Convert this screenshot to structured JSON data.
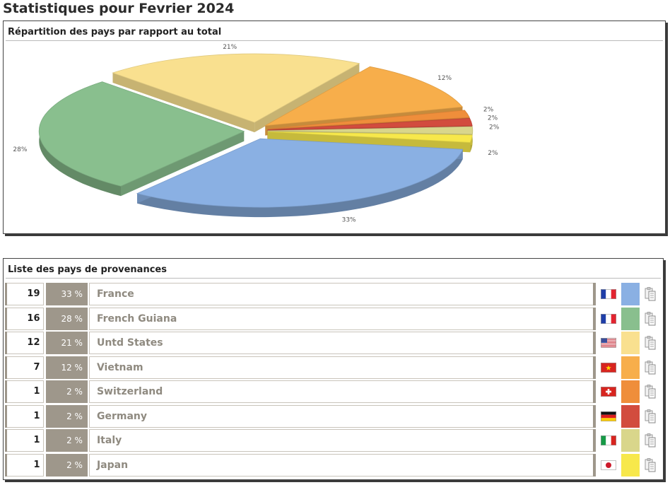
{
  "page": {
    "title": "Statistiques pour Fevrier 2024"
  },
  "chart_panel": {
    "title": "Répartition des pays par rapport au total"
  },
  "list_panel": {
    "title": "Liste des pays de provenances"
  },
  "chart_data": {
    "type": "pie",
    "title": "",
    "categories": [
      "France",
      "French Guiana",
      "Untd States",
      "Vietnam",
      "Switzerland",
      "Germany",
      "Italy",
      "Japan"
    ],
    "values": [
      19,
      16,
      12,
      7,
      1,
      1,
      1,
      1
    ],
    "labels": [
      "33%",
      "28%",
      "21%",
      "12%",
      "2%",
      "2%",
      "2%",
      "2%"
    ],
    "colors": [
      "#8ab0e3",
      "#89bf8e",
      "#f9e08f",
      "#f7ae4b",
      "#ef8e3b",
      "#d24c3e",
      "#d9d68b",
      "#f7e84b"
    ],
    "exploded": true
  },
  "rows": [
    {
      "count": "19",
      "percent": "33 %",
      "country": "France",
      "flag_icon": "flag-france-icon",
      "color": "#8ab0e3"
    },
    {
      "count": "16",
      "percent": "28 %",
      "country": "French Guiana",
      "flag_icon": "flag-france-icon",
      "color": "#89bf8e"
    },
    {
      "count": "12",
      "percent": "21 %",
      "country": "Untd States",
      "flag_icon": "flag-usa-icon",
      "color": "#f9e08f"
    },
    {
      "count": "7",
      "percent": "12 %",
      "country": "Vietnam",
      "flag_icon": "flag-vietnam-icon",
      "color": "#f7ae4b"
    },
    {
      "count": "1",
      "percent": "2 %",
      "country": "Switzerland",
      "flag_icon": "flag-switzerland-icon",
      "color": "#ef8e3b"
    },
    {
      "count": "1",
      "percent": "2 %",
      "country": "Germany",
      "flag_icon": "flag-germany-icon",
      "color": "#d24c3e"
    },
    {
      "count": "1",
      "percent": "2 %",
      "country": "Italy",
      "flag_icon": "flag-italy-icon",
      "color": "#d9d68b"
    },
    {
      "count": "1",
      "percent": "2 %",
      "country": "Japan",
      "flag_icon": "flag-japan-icon",
      "color": "#f7e84b"
    }
  ],
  "icons": {
    "copy": "clipboard-copy-icon"
  }
}
